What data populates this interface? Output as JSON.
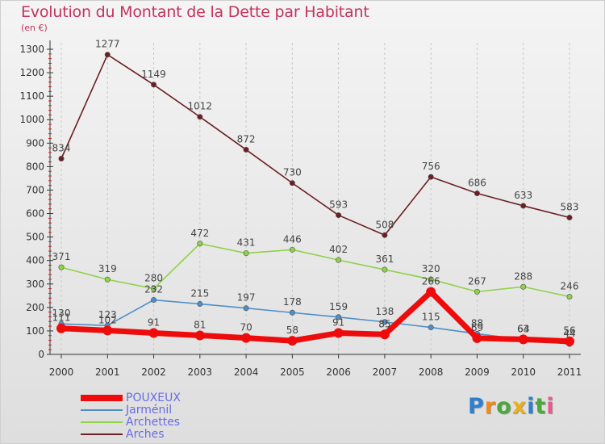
{
  "title": "Evolution du Montant de la Dette par Habitant",
  "subtitle": "(en €)",
  "logo": {
    "letters": [
      "P",
      "r",
      "o",
      "x",
      "i",
      "t",
      "i"
    ],
    "colors": [
      "#2e7fd1",
      "#f08a1c",
      "#4aa83c",
      "#e8b01c",
      "#2e7fd1",
      "#4aa83c",
      "#e85a8a"
    ]
  },
  "chart_data": {
    "type": "line",
    "title": "Evolution du Montant de la Dette par Habitant",
    "ylabel": "(en €)",
    "xlabel": "",
    "x": [
      "2000",
      "2001",
      "2002",
      "2003",
      "2004",
      "2005",
      "2006",
      "2007",
      "2008",
      "2009",
      "2010",
      "2011"
    ],
    "ylim": [
      0,
      1300
    ],
    "yticks": [
      0,
      100,
      200,
      300,
      400,
      500,
      600,
      700,
      800,
      900,
      1000,
      1100,
      1200,
      1300
    ],
    "grid": "vertical dashed",
    "legend": "bottom-left",
    "series": [
      {
        "name": "Arches",
        "color": "#6b1f24",
        "values": [
          834,
          1277,
          1149,
          1012,
          872,
          730,
          593,
          508,
          756,
          686,
          633,
          583
        ]
      },
      {
        "name": "Archettes",
        "color": "#8fd24a",
        "values": [
          371,
          319,
          280,
          472,
          431,
          446,
          402,
          361,
          320,
          267,
          288,
          246
        ]
      },
      {
        "name": "Jarménil",
        "color": "#4e8fc8",
        "values": [
          130,
          123,
          232,
          215,
          197,
          178,
          159,
          138,
          115,
          88,
          63,
          44
        ]
      },
      {
        "name": "POUXEUX",
        "color": "#ee0b0b",
        "values": [
          111,
          102,
          91,
          81,
          70,
          58,
          91,
          85,
          266,
          69,
          64,
          56
        ]
      }
    ]
  }
}
